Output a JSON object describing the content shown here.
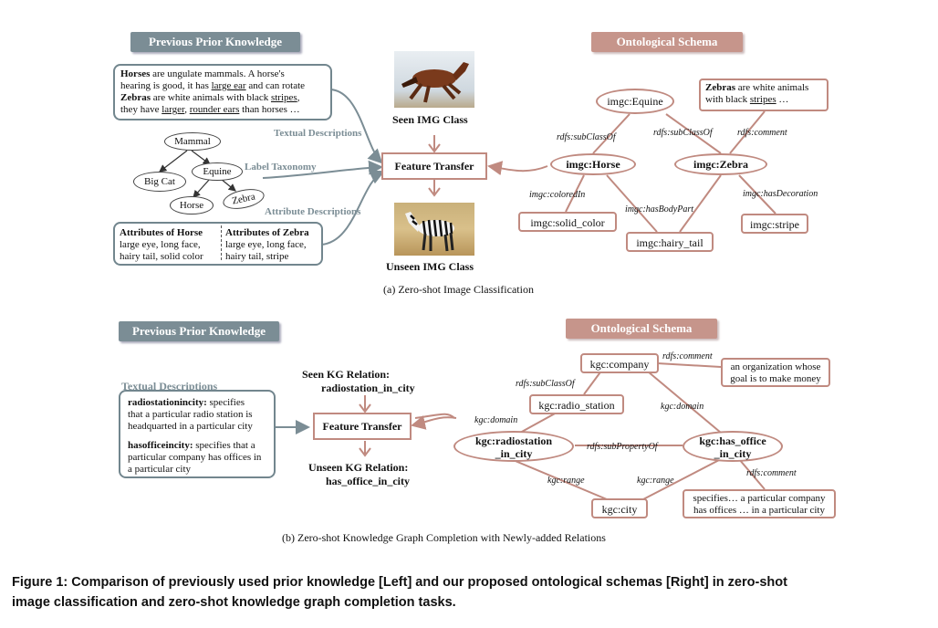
{
  "part_a": {
    "header_left": "Previous Prior Knowledge",
    "header_right": "Ontological Schema",
    "text_box": {
      "horse_word": "Horses",
      "horse_rest1": " are ungulate mammals. A horse's",
      "horse_rest2a": "hearing is good, it has ",
      "horse_ear": "large ear",
      "horse_rest2b": " and can rotate",
      "zebra_word": "Zebras",
      "zebra_rest1": " are white animals with black ",
      "zebra_stripes": "stripes",
      "zebra_comma": ",",
      "zebra_rest2a": "they have ",
      "zebra_larger": "larger",
      "zebra_comma2": ", ",
      "zebra_rounder": "rounder ears",
      "zebra_rest2b": " than horses …"
    },
    "taxonomy": {
      "mammal": "Mammal",
      "equine": "Equine",
      "big_cat": "Big Cat",
      "horse": "Horse",
      "zebra": "Zebra"
    },
    "labels": {
      "textual": "Textual Descriptions",
      "taxonomy": "Label Taxonomy",
      "attribute": "Attribute Descriptions"
    },
    "attr_horse_title": "Attributes of Horse",
    "attr_horse_l1": "large eye, long face,",
    "attr_horse_l2": "hairy tail, solid color",
    "attr_zebra_title": "Attributes of Zebra",
    "attr_zebra_l1": "large eye, long face,",
    "attr_zebra_l2": "hairy tail, stripe",
    "seen_label": "Seen IMG Class",
    "unseen_label": "Unseen IMG Class",
    "feature_transfer": "Feature Transfer",
    "onto": {
      "equine": "imgc:Equine",
      "horse": "imgc:Horse",
      "zebra": "imgc:Zebra",
      "solid_color": "imgc:solid_color",
      "hairy_tail": "imgc:hairy_tail",
      "stripe": "imgc:stripe",
      "comment_zebra_word": "Zebras",
      "comment_rest1": " are white animals",
      "comment_rest2a": "with black ",
      "comment_stripes": "stripes",
      "comment_rest2b": " …",
      "e_subclass1": "rdfs:subClassOf",
      "e_subclass2": "rdfs:subClassOf",
      "e_comment": "rdfs:comment",
      "e_colored": "imgc:coloredIn",
      "e_bodypart": "imgc:hasBodyPart",
      "e_decoration": "imgc:hasDecoration"
    },
    "caption": "(a)  Zero-shot Image Classification"
  },
  "part_b": {
    "header_left": "Previous Prior Knowledge",
    "header_right": "Ontological Schema",
    "textual_label": "Textual Descriptions",
    "desc1_title": "radiostationincity:",
    "desc1_rest": " specifies",
    "desc1_l2": "that a particular radio station is",
    "desc1_l3": "headquarted in a particular city",
    "desc2_title": "hasofficeincity:",
    "desc2_rest": " specifies that a",
    "desc2_l2": "particular company has offices in",
    "desc2_l3": "a particular  city",
    "seen_title": "Seen KG Relation:",
    "seen_rel": "radiostation_in_city",
    "unseen_title": "Unseen KG Relation:",
    "unseen_rel": "has_office_in_city",
    "feature_transfer": "Feature Transfer",
    "onto": {
      "company": "kgc:company",
      "radio_station": "kgc:radio_station",
      "radiostation_l1": "kgc:radiostation",
      "radiostation_l2": "_in_city",
      "has_office_l1": "kgc:has_office",
      "has_office_l2": "_in_city",
      "city": "kgc:city",
      "comment1_l1": "an organization whose",
      "comment1_l2": "goal is to make money",
      "comment2_l1": "specifies… a particular company",
      "comment2_l2": "has offices … in a particular  city",
      "e_comment1": "rdfs:comment",
      "e_subclass": "rdfs:subClassOf",
      "e_domain1": "kgc:domain",
      "e_domain2": "kgc:domain",
      "e_subprop": "rdfs:subPropertyOf",
      "e_range1": "kgc:range",
      "e_range2": "kgc:range",
      "e_comment2": "rdfs:comment"
    },
    "caption": "(b)  Zero-shot Knowledge Graph Completion with Newly-added Relations"
  },
  "figure_caption": {
    "line1": "Figure 1: Comparison of previously used prior knowledge [Left] and our proposed ontological schemas [Right] in zero-shot",
    "line2": "image classification and zero-shot knowledge graph completion tasks."
  },
  "colors": {
    "gray_accent": "#7b8d95",
    "rose_accent": "#c08a80"
  }
}
